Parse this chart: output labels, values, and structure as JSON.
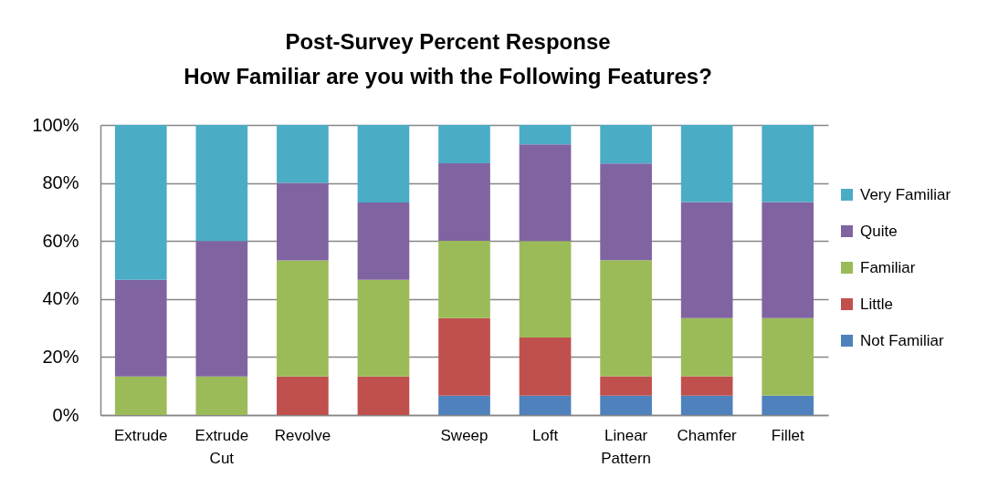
{
  "chart_data": {
    "type": "bar",
    "title": "Post-Survey Percent Response",
    "subtitle": "How Familiar are you with the Following Features?",
    "categories": [
      "Extrude",
      "Extrude Cut",
      "Revolve",
      null,
      "Sweep",
      "Loft",
      "Linear Pattern",
      "Chamfer",
      "Fillet"
    ],
    "stacked": true,
    "series": [
      {
        "name": "Not Familiar",
        "color": "#4f81bd",
        "values": [
          0,
          0,
          0,
          0,
          6.7,
          6.7,
          6.7,
          6.7,
          6.7
        ]
      },
      {
        "name": "Little",
        "color": "#c0504d",
        "values": [
          0,
          0,
          13.3,
          13.3,
          26.7,
          20,
          6.7,
          6.7,
          0
        ]
      },
      {
        "name": "Familiar",
        "color": "#9bbb59",
        "values": [
          13.3,
          13.3,
          40,
          33.3,
          26.7,
          33.3,
          40,
          20,
          26.7
        ]
      },
      {
        "name": "Quite",
        "color": "#8064a2",
        "values": [
          33.3,
          46.7,
          26.7,
          26.7,
          26.7,
          33.3,
          33.3,
          40,
          40
        ]
      },
      {
        "name": "Very Familiar",
        "color": "#4bacc6",
        "values": [
          53.4,
          40,
          20,
          26.7,
          13.2,
          6.7,
          13.3,
          26.6,
          26.6
        ]
      }
    ],
    "ylim": [
      0,
      100
    ],
    "yticks": [
      {
        "value": 0,
        "label": "0%"
      },
      {
        "value": 20,
        "label": "20%"
      },
      {
        "value": 40,
        "label": "40%"
      },
      {
        "value": 60,
        "label": "60%"
      },
      {
        "value": 80,
        "label": "80%"
      },
      {
        "value": 100,
        "label": "100%"
      }
    ],
    "grid": "y",
    "legend": "right"
  }
}
